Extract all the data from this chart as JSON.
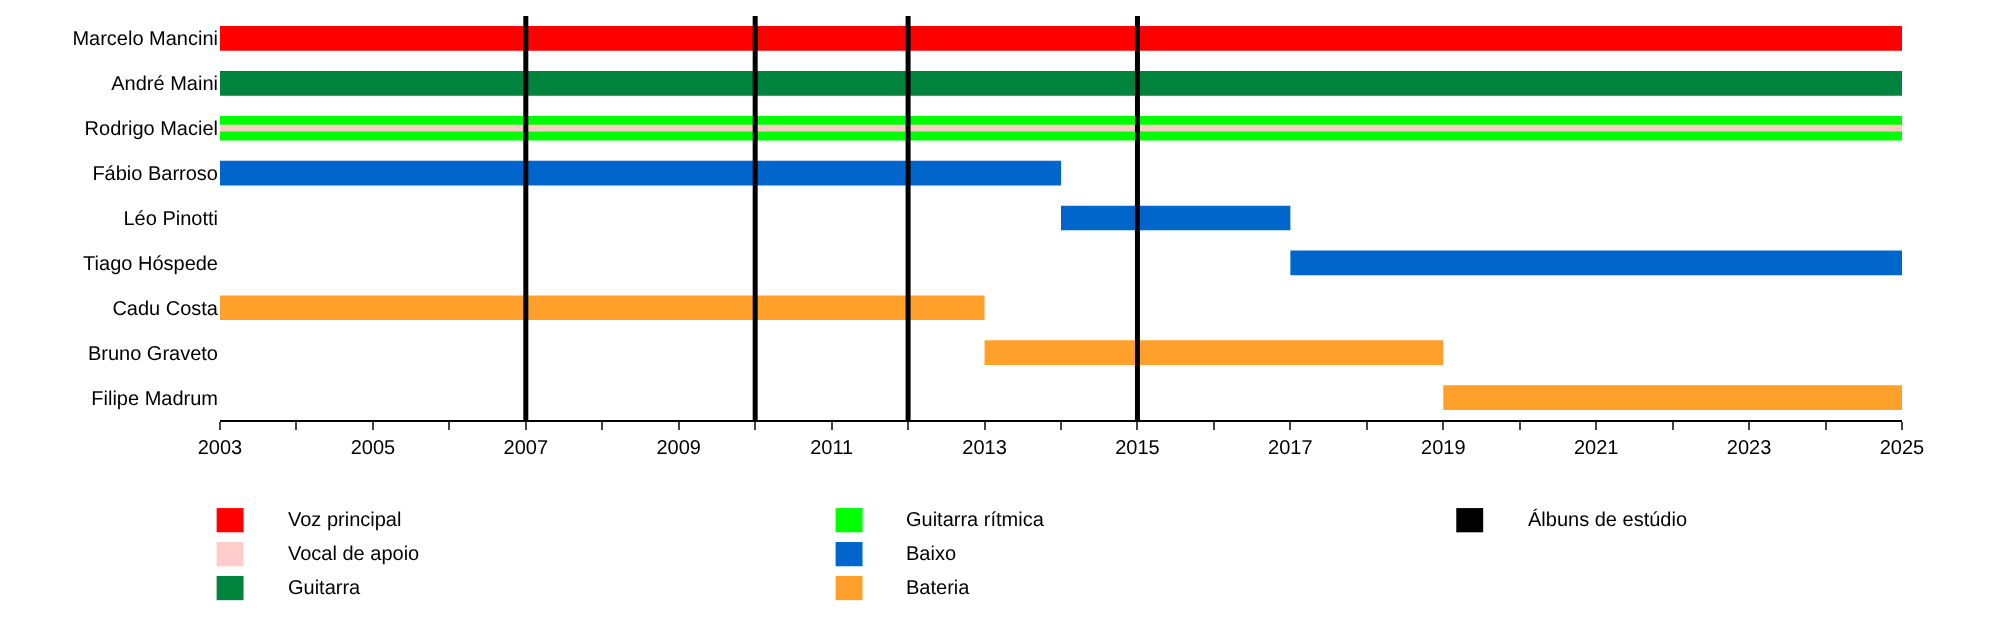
{
  "chart_data": {
    "type": "bar",
    "orientation": "horizontal",
    "categories": [
      "Marcelo Mancini",
      "André Maini",
      "Rodrigo Maciel",
      "Fábio Barroso",
      "Léo Pinotti",
      "Tiago Hóspede",
      "Cadu Costa",
      "Bruno Graveto",
      "Filipe Madrum"
    ],
    "series": [
      {
        "name": "Voz principal",
        "color": "#ff0000",
        "base": [
          2003,
          null,
          null,
          null,
          null,
          null,
          null,
          null,
          null
        ],
        "values": [
          22,
          null,
          null,
          null,
          null,
          null,
          null,
          null,
          null
        ]
      },
      {
        "name": "Vocal de apoio",
        "color": "#ffcccc",
        "base": [
          null,
          null,
          2003,
          null,
          null,
          null,
          null,
          null,
          null
        ],
        "values": [
          null,
          null,
          22,
          null,
          null,
          null,
          null,
          null,
          null
        ]
      },
      {
        "name": "Guitarra",
        "color": "#00843d",
        "base": [
          null,
          2003,
          null,
          null,
          null,
          null,
          null,
          null,
          null
        ],
        "values": [
          null,
          22,
          null,
          null,
          null,
          null,
          null,
          null,
          null
        ]
      },
      {
        "name": "Guitarra rítmica",
        "color": "#00ff00",
        "base": [
          null,
          null,
          2003,
          null,
          null,
          null,
          null,
          null,
          null
        ],
        "values": [
          null,
          null,
          22,
          null,
          null,
          null,
          null,
          null,
          null
        ]
      },
      {
        "name": "Baixo",
        "color": "#0066cc",
        "base": [
          null,
          null,
          null,
          2003,
          2014,
          2017,
          null,
          null,
          null
        ],
        "values": [
          null,
          null,
          null,
          11,
          3,
          8,
          null,
          null,
          null
        ]
      },
      {
        "name": "Bateria",
        "color": "#ffa02a",
        "base": [
          null,
          null,
          null,
          null,
          null,
          null,
          2003,
          2013,
          2019
        ],
        "values": [
          null,
          null,
          null,
          null,
          null,
          null,
          10,
          6,
          6
        ]
      }
    ],
    "ref_lines": [
      {
        "axis": "x",
        "value": 2007,
        "label": "Álbuns de estúdio",
        "color": "#000000"
      },
      {
        "axis": "x",
        "value": 2010,
        "color": "#000000"
      },
      {
        "axis": "x",
        "value": 2012,
        "color": "#000000"
      },
      {
        "axis": "x",
        "value": 2015,
        "color": "#000000"
      }
    ],
    "xlim": [
      2003,
      2025
    ],
    "xticks": [
      2003,
      {
        "value": 2004,
        "label": null
      },
      2005,
      {
        "value": 2006,
        "label": null
      },
      2007,
      {
        "value": 2008,
        "label": null
      },
      2009,
      {
        "value": 2010,
        "label": null
      },
      2011,
      {
        "value": 2012,
        "label": null
      },
      2013,
      {
        "value": 2014,
        "label": null
      },
      2015,
      {
        "value": 2016,
        "label": null
      },
      2017,
      {
        "value": 2018,
        "label": null
      },
      2019,
      {
        "value": 2020,
        "label": null
      },
      2021,
      {
        "value": 2022,
        "label": null
      },
      2023,
      {
        "value": 2024,
        "label": null
      },
      2025
    ],
    "legend": "bottom"
  }
}
